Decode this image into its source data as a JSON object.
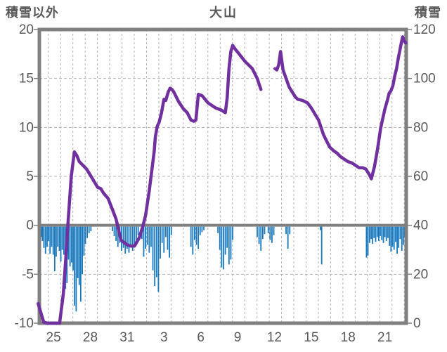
{
  "chart_data": {
    "type": "combo",
    "title": "大山",
    "axes": {
      "left": {
        "label": "積雪以外",
        "min": -10,
        "max": 20,
        "ticks": [
          20,
          15,
          10,
          5,
          0,
          -5,
          -10
        ]
      },
      "right": {
        "label": "積雪",
        "min": 0,
        "max": 120,
        "ticks": [
          120,
          100,
          80,
          60,
          40,
          20,
          0
        ]
      },
      "x": {
        "tick_labels": [
          "25",
          "28",
          "31",
          "3",
          "6",
          "9",
          "12",
          "15",
          "18",
          "21"
        ],
        "tick_positions": [
          0,
          3,
          6,
          9,
          12,
          15,
          18,
          21,
          24,
          27
        ],
        "range": [
          -1.15,
          28.74
        ],
        "gridline_start": -0.42,
        "gridline_step": 1,
        "gridline_count": 30,
        "grid": "dashed"
      }
    },
    "colors": {
      "line": "#7030A0",
      "bar": "#1878BE",
      "frame": "#808080",
      "grid": "#b3b3b3",
      "text": "#595959"
    },
    "series": [
      {
        "name": "積雪",
        "type": "line",
        "axis": "right",
        "color": "#7030A0",
        "segments": [
          [
            [
              -1.25,
              8
            ],
            [
              -1.1,
              5.5
            ],
            [
              -0.8,
              0.5
            ],
            [
              -0.5,
              0
            ],
            [
              0.5,
              0
            ],
            [
              0.8,
              12
            ],
            [
              1.0,
              26
            ],
            [
              1.2,
              42
            ],
            [
              1.45,
              60
            ],
            [
              1.7,
              70
            ],
            [
              1.9,
              68.5
            ],
            [
              2.1,
              66
            ],
            [
              2.7,
              63
            ],
            [
              3.0,
              60.5
            ],
            [
              3.3,
              58
            ],
            [
              3.6,
              55.5
            ],
            [
              3.85,
              55
            ],
            [
              4.1,
              53
            ],
            [
              4.45,
              51
            ],
            [
              4.8,
              46.5
            ],
            [
              5.1,
              42.5
            ],
            [
              5.5,
              34
            ],
            [
              6.0,
              32
            ],
            [
              6.3,
              31.5
            ],
            [
              6.6,
              31.5
            ],
            [
              7.0,
              35
            ],
            [
              7.3,
              40
            ],
            [
              7.5,
              44
            ],
            [
              7.8,
              54
            ],
            [
              8.0,
              62
            ],
            [
              8.2,
              70
            ],
            [
              8.3,
              76
            ],
            [
              8.45,
              80.5
            ],
            [
              8.6,
              82
            ],
            [
              8.8,
              86
            ],
            [
              9.0,
              91.5
            ],
            [
              9.15,
              91
            ],
            [
              9.35,
              94.5
            ],
            [
              9.5,
              96
            ],
            [
              9.65,
              95.5
            ],
            [
              9.8,
              94.5
            ],
            [
              10.2,
              90.5
            ],
            [
              10.6,
              87.5
            ],
            [
              10.9,
              86
            ],
            [
              11.2,
              83
            ],
            [
              11.45,
              82.5
            ],
            [
              11.6,
              83
            ],
            [
              11.8,
              93.5
            ],
            [
              12.1,
              93
            ],
            [
              12.6,
              90
            ],
            [
              13.2,
              88
            ],
            [
              13.7,
              87
            ],
            [
              14.0,
              86
            ],
            [
              14.15,
              92
            ],
            [
              14.3,
              104
            ],
            [
              14.45,
              111
            ],
            [
              14.6,
              113.5
            ],
            [
              14.8,
              112
            ],
            [
              15.05,
              110.5
            ],
            [
              15.6,
              107
            ],
            [
              16.2,
              104
            ],
            [
              16.6,
              100
            ],
            [
              16.9,
              95.5
            ]
          ],
          [
            [
              18.05,
              104
            ],
            [
              18.2,
              103.5
            ],
            [
              18.35,
              105.5
            ],
            [
              18.5,
              111
            ],
            [
              18.7,
              103.5
            ],
            [
              19.2,
              96.5
            ],
            [
              19.7,
              92.5
            ],
            [
              19.9,
              91.5
            ],
            [
              20.3,
              91
            ],
            [
              20.7,
              90
            ],
            [
              21.0,
              88
            ],
            [
              21.6,
              83
            ],
            [
              22.0,
              77
            ],
            [
              22.3,
              74
            ],
            [
              22.5,
              72
            ],
            [
              22.8,
              70.5
            ],
            [
              23.1,
              69.5
            ],
            [
              23.4,
              68
            ],
            [
              23.7,
              67
            ],
            [
              24.0,
              66
            ],
            [
              24.3,
              65.5
            ],
            [
              24.6,
              64.5
            ],
            [
              24.9,
              63.5
            ],
            [
              25.2,
              63.5
            ],
            [
              25.45,
              63
            ],
            [
              25.7,
              61
            ],
            [
              25.9,
              59
            ],
            [
              26.15,
              64
            ],
            [
              26.4,
              71
            ],
            [
              26.65,
              79.5
            ],
            [
              26.8,
              83
            ],
            [
              27.0,
              87.5
            ],
            [
              27.2,
              91
            ],
            [
              27.35,
              94
            ],
            [
              27.5,
              95
            ],
            [
              27.65,
              97
            ],
            [
              27.8,
              101
            ],
            [
              27.95,
              104
            ],
            [
              28.1,
              108.5
            ],
            [
              28.2,
              111
            ],
            [
              28.3,
              113.5
            ],
            [
              28.45,
              117
            ],
            [
              28.55,
              115.5
            ],
            [
              28.7,
              114.5
            ]
          ]
        ]
      },
      {
        "name": "積雪以外",
        "type": "bar",
        "axis": "left",
        "color": "#1878BE",
        "points": [
          [
            -1.0,
            -1.2
          ],
          [
            -0.9,
            -1.6
          ],
          [
            -0.78,
            -2.3
          ],
          [
            -0.65,
            -2.9
          ],
          [
            -0.52,
            -2.2
          ],
          [
            -0.4,
            -1.6
          ],
          [
            -0.28,
            -2.9
          ],
          [
            -0.15,
            -2.2
          ],
          [
            -0.02,
            -3.0
          ],
          [
            0.1,
            -4.7
          ],
          [
            0.22,
            -3.2
          ],
          [
            0.35,
            -2.2
          ],
          [
            0.48,
            -2.6
          ],
          [
            0.6,
            -3.7
          ],
          [
            0.72,
            -2.5
          ],
          [
            0.85,
            -3.0
          ],
          [
            0.98,
            -6.5
          ],
          [
            1.1,
            -5.9
          ],
          [
            1.22,
            -3.5
          ],
          [
            1.35,
            -4.2
          ],
          [
            1.48,
            -3.8
          ],
          [
            1.6,
            -4.6
          ],
          [
            1.72,
            -8.2
          ],
          [
            1.85,
            -8.8
          ],
          [
            1.98,
            -5.4
          ],
          [
            2.1,
            -6.1
          ],
          [
            2.22,
            -7.8
          ],
          [
            2.35,
            -5.0
          ],
          [
            2.48,
            -3.1
          ],
          [
            2.6,
            -1.9
          ],
          [
            2.75,
            -1.3
          ],
          [
            2.9,
            -0.8
          ],
          [
            3.05,
            -0.6
          ],
          [
            4.8,
            -0.6
          ],
          [
            4.95,
            -1.1
          ],
          [
            5.1,
            -1.6
          ],
          [
            5.25,
            -2.2
          ],
          [
            5.4,
            -1.8
          ],
          [
            5.55,
            -2.6
          ],
          [
            5.7,
            -2.3
          ],
          [
            5.85,
            -2.9
          ],
          [
            6.0,
            -2.4
          ],
          [
            6.15,
            -2.8
          ],
          [
            6.3,
            -2.2
          ],
          [
            6.45,
            -2.6
          ],
          [
            6.6,
            -2.0
          ],
          [
            6.75,
            -1.5
          ],
          [
            6.9,
            -1.0
          ],
          [
            7.2,
            -1.4
          ],
          [
            7.35,
            -3.2
          ],
          [
            7.5,
            -2.4
          ],
          [
            7.65,
            -2.0
          ],
          [
            7.8,
            -2.8
          ],
          [
            7.95,
            -2.2
          ],
          [
            8.1,
            -4.6
          ],
          [
            8.25,
            -6.2
          ],
          [
            8.4,
            -5.3
          ],
          [
            8.55,
            -6.8
          ],
          [
            8.7,
            -3.4
          ],
          [
            8.85,
            -1.8
          ],
          [
            9.0,
            -2.8
          ],
          [
            9.15,
            -1.2
          ],
          [
            9.3,
            -2.5
          ],
          [
            9.45,
            -3.3
          ],
          [
            9.6,
            -1.0
          ],
          [
            11.2,
            -2.2
          ],
          [
            11.35,
            -3.0
          ],
          [
            11.5,
            -1.5
          ],
          [
            11.65,
            -2.0
          ],
          [
            11.8,
            -2.4
          ],
          [
            11.95,
            -1.0
          ],
          [
            12.1,
            -0.7
          ],
          [
            12.25,
            -0.5
          ],
          [
            13.4,
            -0.8
          ],
          [
            13.55,
            -2.5
          ],
          [
            13.7,
            -4.3
          ],
          [
            13.85,
            -4.5
          ],
          [
            14.0,
            -3.0
          ],
          [
            14.15,
            -2.3
          ],
          [
            14.3,
            -4.0
          ],
          [
            14.45,
            -3.5
          ],
          [
            14.6,
            -1.5
          ],
          [
            16.6,
            -1.2
          ],
          [
            16.75,
            -1.9
          ],
          [
            16.9,
            -2.6
          ],
          [
            17.05,
            -1.4
          ],
          [
            17.2,
            -0.9
          ],
          [
            17.5,
            -0.8
          ],
          [
            17.65,
            -1.5
          ],
          [
            17.8,
            -1.8
          ],
          [
            17.95,
            -1.0
          ],
          [
            18.95,
            -0.9
          ],
          [
            19.1,
            -2.4
          ],
          [
            19.25,
            -0.9
          ],
          [
            21.75,
            -0.5
          ],
          [
            21.85,
            -4.0
          ],
          [
            25.5,
            -3.3
          ],
          [
            25.62,
            -3.1
          ],
          [
            25.75,
            -1.8
          ],
          [
            25.88,
            -1.4
          ],
          [
            26.0,
            -1.9
          ],
          [
            26.12,
            -1.3
          ],
          [
            26.25,
            -1.7
          ],
          [
            26.38,
            -1.2
          ],
          [
            26.5,
            -1.6
          ],
          [
            26.62,
            -1.1
          ],
          [
            26.75,
            -1.5
          ],
          [
            26.88,
            -1.8
          ],
          [
            27.0,
            -1.2
          ],
          [
            27.12,
            -1.6
          ],
          [
            27.25,
            -1.3
          ],
          [
            27.38,
            -2.1
          ],
          [
            27.5,
            -2.7
          ],
          [
            27.62,
            -2.2
          ],
          [
            27.75,
            -2.5
          ],
          [
            27.88,
            -1.7
          ],
          [
            28.0,
            -2.9
          ],
          [
            28.12,
            -2.3
          ],
          [
            28.25,
            -1.4
          ],
          [
            28.38,
            -2.6
          ],
          [
            28.5,
            -2.0
          ],
          [
            28.62,
            -1.2
          ]
        ]
      }
    ]
  }
}
